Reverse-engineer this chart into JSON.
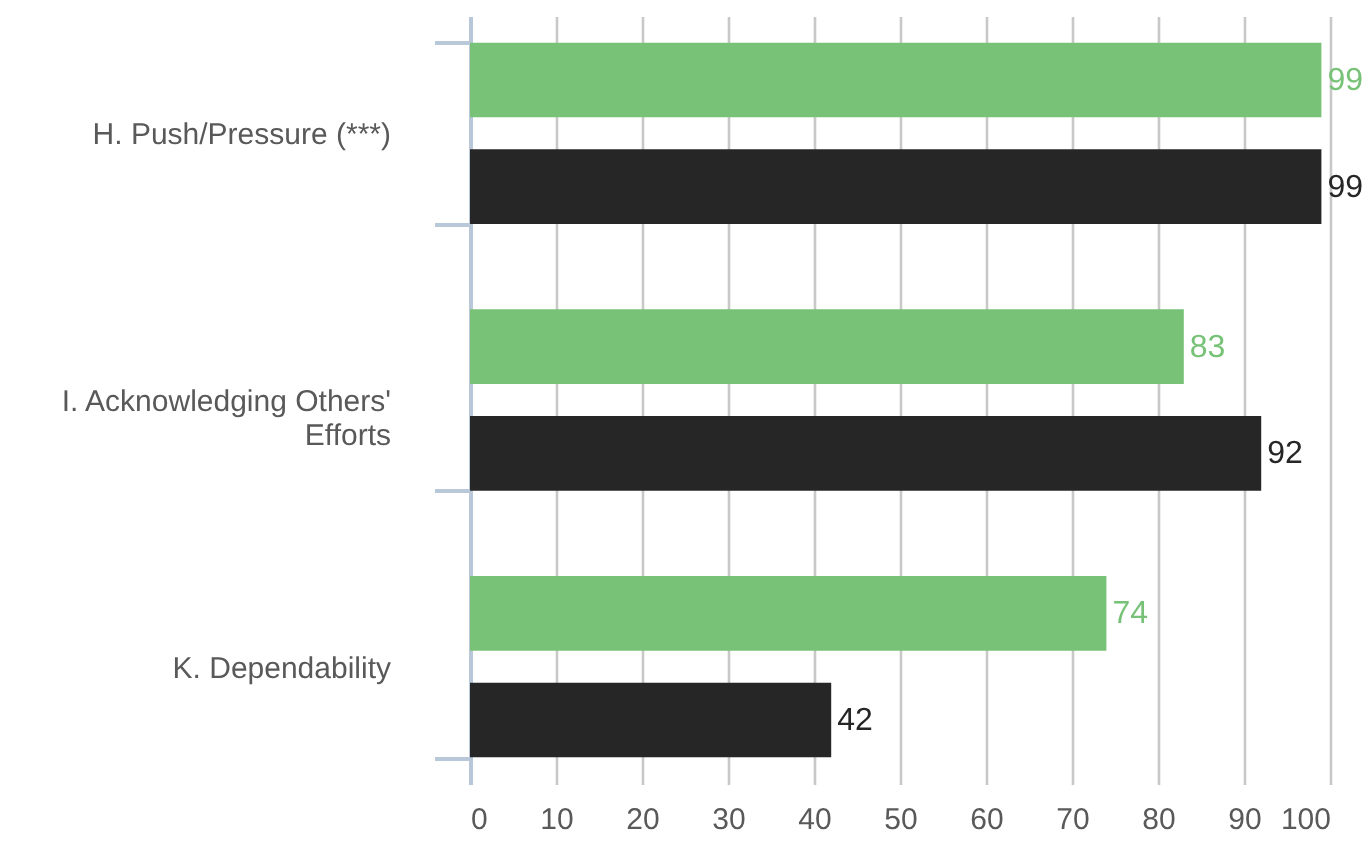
{
  "chart_data": {
    "type": "bar",
    "orientation": "horizontal",
    "categories": [
      "H. Push/Pressure (***)",
      "I. Acknowledging Others' Efforts",
      "K. Dependability"
    ],
    "series": [
      {
        "color": "#77c277",
        "values": [
          99,
          83,
          74
        ]
      },
      {
        "color": "#262626",
        "values": [
          99,
          92,
          42
        ]
      }
    ],
    "xlim": [
      0,
      100
    ],
    "xticks": [
      0,
      10,
      20,
      30,
      40,
      50,
      60,
      70,
      80,
      90,
      100
    ],
    "grid": "x",
    "data_labels": true
  }
}
